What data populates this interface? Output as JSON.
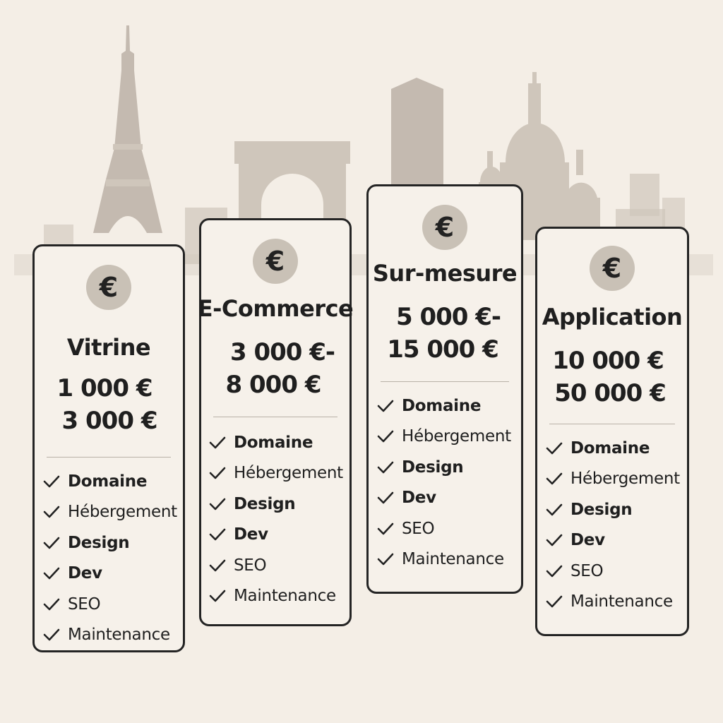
{
  "plans": [
    {
      "id": "vitrine",
      "icon": "euro-icon",
      "title": "Vitrine",
      "price_line1": "1 000 €",
      "price_line2": "3 000 €",
      "features": [
        "Domaine",
        "Hébergement",
        "Design",
        "Dev",
        "SEO",
        "Maintenance"
      ]
    },
    {
      "id": "ecommerce",
      "icon": "euro-icon",
      "title": "E-Commerce",
      "price_line1": "3 000 €-",
      "price_line2": "8 000 €",
      "features": [
        "Domaine",
        "Hébergement",
        "Design",
        "Dev",
        "SEO",
        "Maintenance"
      ]
    },
    {
      "id": "surmesure",
      "icon": "euro-icon",
      "title": "Sur-mesure",
      "price_line1": "5 000 €-",
      "price_line2": "15 000 €",
      "features": [
        "Domaine",
        "Hébergement",
        "Design",
        "Dev",
        "SEO",
        "Maintenance"
      ]
    },
    {
      "id": "application",
      "icon": "euro-icon",
      "title": "Application",
      "price_line1": "10 000 €",
      "price_line2": "50 000 €",
      "features": [
        "Domaine",
        "Hébergement",
        "Design",
        "Dev",
        "SEO",
        "Maintenance"
      ]
    }
  ],
  "colors": {
    "background": "#f4eee6",
    "card_border": "#242424",
    "badge": "#c9c1b6",
    "skyline": "#cfc6bb"
  },
  "badge_symbol": "€"
}
